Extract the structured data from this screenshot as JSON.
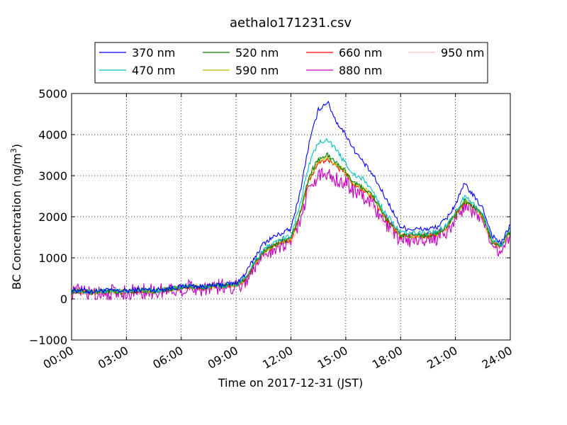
{
  "chart_data": {
    "type": "line",
    "title": "aethalo171231.csv",
    "xlabel": "Time on 2017-12-31 (JST)",
    "ylabel_main": "BC Concentration (ng/m",
    "ylabel_sup": "3",
    "ylabel_close": ")",
    "xlim_hours": [
      0,
      24
    ],
    "ylim": [
      -1000,
      5000
    ],
    "x_ticks": [
      {
        "h": 0,
        "label": "00:00"
      },
      {
        "h": 3,
        "label": "03:00"
      },
      {
        "h": 6,
        "label": "06:00"
      },
      {
        "h": 9,
        "label": "09:00"
      },
      {
        "h": 12,
        "label": "12:00"
      },
      {
        "h": 15,
        "label": "15:00"
      },
      {
        "h": 18,
        "label": "18:00"
      },
      {
        "h": 21,
        "label": "21:00"
      },
      {
        "h": 24,
        "label": "24:00"
      }
    ],
    "y_ticks": [
      {
        "v": -1000,
        "label": "−1000"
      },
      {
        "v": 0,
        "label": "0"
      },
      {
        "v": 1000,
        "label": "1000"
      },
      {
        "v": 2000,
        "label": "2000"
      },
      {
        "v": 3000,
        "label": "3000"
      },
      {
        "v": 4000,
        "label": "4000"
      },
      {
        "v": 5000,
        "label": "5000"
      }
    ],
    "grid": true,
    "legend_position": "top-center",
    "hours": [
      0,
      0.5,
      1,
      1.5,
      2,
      2.5,
      3,
      3.5,
      4,
      4.5,
      5,
      5.5,
      6,
      6.5,
      7,
      7.5,
      8,
      8.5,
      9,
      9.5,
      10,
      10.5,
      11,
      11.5,
      12,
      12.5,
      13,
      13.5,
      14,
      14.5,
      15,
      15.5,
      16,
      16.5,
      17,
      17.5,
      18,
      18.5,
      19,
      19.5,
      20,
      20.5,
      21,
      21.5,
      22,
      22.5,
      23,
      23.5,
      24
    ],
    "series": [
      {
        "name": "370 nm",
        "color": "#0000ff",
        "noise": 60,
        "values": [
          200,
          220,
          180,
          200,
          210,
          190,
          200,
          220,
          230,
          210,
          240,
          260,
          300,
          320,
          300,
          310,
          330,
          360,
          380,
          600,
          1000,
          1350,
          1500,
          1600,
          1700,
          2600,
          3800,
          4600,
          4800,
          4300,
          4000,
          3600,
          3300,
          3000,
          2600,
          2200,
          1750,
          1700,
          1700,
          1700,
          1750,
          1950,
          2300,
          2800,
          2500,
          2200,
          1550,
          1350,
          1800
        ]
      },
      {
        "name": "470 nm",
        "color": "#00bfbf",
        "noise": 60,
        "values": [
          190,
          210,
          170,
          190,
          200,
          180,
          190,
          210,
          220,
          200,
          230,
          250,
          290,
          310,
          290,
          300,
          320,
          340,
          360,
          520,
          900,
          1200,
          1350,
          1450,
          1550,
          2300,
          3300,
          3800,
          3900,
          3600,
          3300,
          3000,
          2900,
          2600,
          2200,
          1900,
          1600,
          1600,
          1600,
          1600,
          1650,
          1800,
          2100,
          2500,
          2300,
          2050,
          1450,
          1300,
          1700
        ]
      },
      {
        "name": "520 nm",
        "color": "#008000",
        "noise": 60,
        "values": [
          180,
          200,
          160,
          180,
          190,
          170,
          180,
          200,
          210,
          190,
          220,
          240,
          280,
          300,
          280,
          290,
          310,
          330,
          350,
          480,
          850,
          1150,
          1300,
          1400,
          1450,
          2100,
          3000,
          3400,
          3500,
          3300,
          3100,
          2800,
          2700,
          2500,
          2100,
          1800,
          1550,
          1550,
          1550,
          1550,
          1600,
          1750,
          2050,
          2400,
          2250,
          2000,
          1400,
          1300,
          1650
        ]
      },
      {
        "name": "590 nm",
        "color": "#bfbf00",
        "noise": 60,
        "values": [
          180,
          200,
          160,
          180,
          190,
          170,
          180,
          200,
          210,
          190,
          220,
          240,
          280,
          300,
          280,
          290,
          310,
          330,
          350,
          470,
          840,
          1140,
          1290,
          1390,
          1440,
          2080,
          2950,
          3350,
          3450,
          3250,
          3080,
          2780,
          2680,
          2480,
          2080,
          1790,
          1540,
          1540,
          1540,
          1540,
          1590,
          1740,
          2040,
          2380,
          2240,
          1990,
          1390,
          1290,
          1640
        ]
      },
      {
        "name": "660 nm",
        "color": "#ff0000",
        "noise": 60,
        "values": [
          170,
          190,
          150,
          170,
          180,
          160,
          170,
          190,
          200,
          180,
          210,
          230,
          270,
          290,
          270,
          280,
          300,
          320,
          340,
          460,
          830,
          1130,
          1280,
          1380,
          1430,
          2050,
          2900,
          3300,
          3400,
          3200,
          3050,
          2750,
          2650,
          2450,
          2050,
          1780,
          1530,
          1530,
          1530,
          1530,
          1580,
          1730,
          2030,
          2360,
          2230,
          1980,
          1380,
          1280,
          1630
        ]
      },
      {
        "name": "880 nm",
        "color": "#bf00bf",
        "noise": 200,
        "values": [
          160,
          180,
          140,
          160,
          170,
          150,
          160,
          180,
          190,
          170,
          200,
          220,
          260,
          280,
          260,
          270,
          290,
          310,
          330,
          430,
          780,
          1080,
          1230,
          1330,
          1380,
          1950,
          2700,
          3000,
          3100,
          2900,
          2850,
          2600,
          2500,
          2300,
          1950,
          1700,
          1450,
          1450,
          1450,
          1450,
          1500,
          1650,
          1950,
          2250,
          2150,
          1900,
          1300,
          1200,
          1550
        ]
      },
      {
        "name": "950 nm",
        "color": "#ffc0cb",
        "noise": 70,
        "values": [
          160,
          180,
          140,
          160,
          170,
          150,
          160,
          180,
          190,
          170,
          200,
          220,
          260,
          280,
          260,
          270,
          290,
          310,
          330,
          420,
          760,
          1050,
          1200,
          1300,
          1350,
          1900,
          2650,
          2950,
          3050,
          2850,
          2800,
          2550,
          2450,
          2250,
          1900,
          1650,
          1420,
          1420,
          1420,
          1420,
          1480,
          1620,
          1920,
          2220,
          2120,
          1880,
          1280,
          1180,
          1530
        ]
      }
    ]
  }
}
